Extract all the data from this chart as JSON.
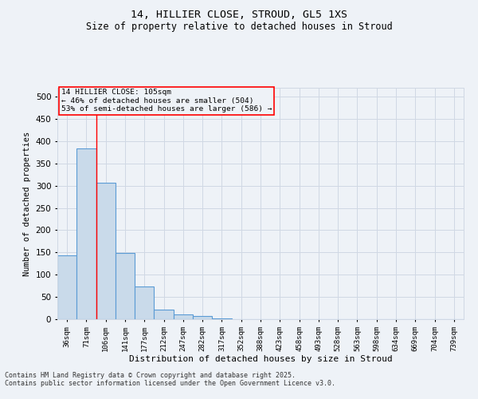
{
  "title_line1": "14, HILLIER CLOSE, STROUD, GL5 1XS",
  "title_line2": "Size of property relative to detached houses in Stroud",
  "xlabel": "Distribution of detached houses by size in Stroud",
  "ylabel": "Number of detached properties",
  "bar_color": "#c9daea",
  "bar_edge_color": "#5b9bd5",
  "categories": [
    "36sqm",
    "71sqm",
    "106sqm",
    "141sqm",
    "177sqm",
    "212sqm",
    "247sqm",
    "282sqm",
    "317sqm",
    "352sqm",
    "388sqm",
    "423sqm",
    "458sqm",
    "493sqm",
    "528sqm",
    "563sqm",
    "598sqm",
    "634sqm",
    "669sqm",
    "704sqm",
    "739sqm"
  ],
  "values": [
    144,
    384,
    307,
    148,
    73,
    22,
    10,
    7,
    2,
    0,
    0,
    0,
    0,
    0,
    0,
    0,
    0,
    0,
    0,
    0,
    0
  ],
  "ylim": [
    0,
    520
  ],
  "yticks": [
    0,
    50,
    100,
    150,
    200,
    250,
    300,
    350,
    400,
    450,
    500
  ],
  "marker_label_line1": "14 HILLIER CLOSE: 105sqm",
  "marker_label_line2": "← 46% of detached houses are smaller (504)",
  "marker_label_line3": "53% of semi-detached houses are larger (586) →",
  "grid_color": "#d0d8e4",
  "background_color": "#eef2f7",
  "footer_line1": "Contains HM Land Registry data © Crown copyright and database right 2025.",
  "footer_line2": "Contains public sector information licensed under the Open Government Licence v3.0."
}
